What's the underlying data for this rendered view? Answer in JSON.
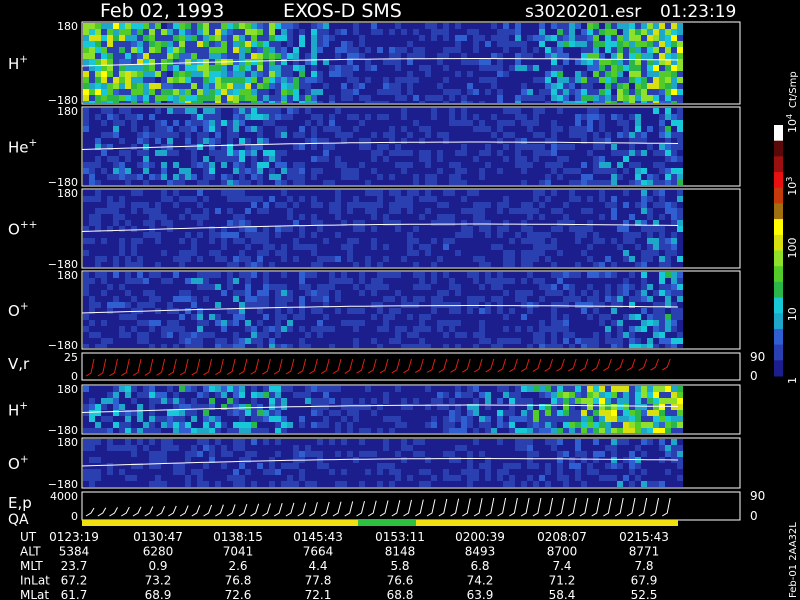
{
  "header": {
    "date": "Feb 02, 1993",
    "instrument": "EXOS-D SMS",
    "file": "s3020201.esr",
    "time": "01:23:19"
  },
  "panels": [
    {
      "id": "h-plus",
      "label": "H",
      "sup": "+",
      "ytop": "180",
      "ybot": "−180"
    },
    {
      "id": "he-plus",
      "label": "He",
      "sup": "+",
      "ytop": "180",
      "ybot": "−180"
    },
    {
      "id": "o-plusplus",
      "label": "O",
      "sup": "++",
      "ytop": "180",
      "ybot": "−180"
    },
    {
      "id": "o-plus",
      "label": "O",
      "sup": "+",
      "ytop": "180",
      "ybot": "−180"
    },
    {
      "id": "vr",
      "label": "V,r",
      "sup": "",
      "ytop": "25",
      "ybot": "0",
      "right_top": "90",
      "right_bot": "0"
    },
    {
      "id": "h-plus-2",
      "label": "H",
      "sup": "+",
      "ytop": "180",
      "ybot": "−180"
    },
    {
      "id": "o-plus-2",
      "label": "O",
      "sup": "+",
      "ytop": "180",
      "ybot": "−180"
    },
    {
      "id": "ep",
      "label": "E,p",
      "sup": "",
      "ytop": "4000",
      "ybot": "0",
      "right_top": "90",
      "right_bot": "0"
    }
  ],
  "qa_label": "QA",
  "colorbar": {
    "unit": "Ct/Smp",
    "ticks": [
      {
        "label": "10",
        "sup": "4",
        "value": 10000
      },
      {
        "label": "10",
        "sup": "3",
        "value": 1000
      },
      {
        "label": "100",
        "sup": "",
        "value": 100
      },
      {
        "label": "10",
        "sup": "",
        "value": 10
      },
      {
        "label": "1",
        "sup": "",
        "value": 1
      }
    ],
    "colors": [
      "#1b1e8c",
      "#2a3fb0",
      "#2f5fd0",
      "#1fa7c9",
      "#18c8d8",
      "#2bb64a",
      "#53cc2a",
      "#8ee02a",
      "#d8e010",
      "#ffff00",
      "#a07010",
      "#c43a0a",
      "#e81010",
      "#9a1010",
      "#5a0808",
      "#ffffff"
    ]
  },
  "footer": {
    "side_label": "Feb-01 2AA32L",
    "rows": [
      {
        "label": "UT",
        "values": [
          "0123:19",
          "0130:47",
          "0138:15",
          "0145:43",
          "0153:11",
          "0200:39",
          "0208:07",
          "0215:43"
        ]
      },
      {
        "label": "ALT",
        "values": [
          "5384",
          "6280",
          "7041",
          "7664",
          "8148",
          "8493",
          "8700",
          "8771"
        ]
      },
      {
        "label": "MLT",
        "values": [
          "23.7",
          "0.9",
          "2.6",
          "4.4",
          "5.8",
          "6.8",
          "7.4",
          "7.8"
        ]
      },
      {
        "label": "InLat",
        "values": [
          "67.2",
          "73.2",
          "76.8",
          "77.8",
          "76.6",
          "74.2",
          "71.2",
          "67.9"
        ]
      },
      {
        "label": "MLat",
        "values": [
          "61.7",
          "68.9",
          "72.6",
          "72.1",
          "68.8",
          "63.9",
          "58.4",
          "52.5"
        ]
      }
    ]
  },
  "chart_data": {
    "type": "heatmap",
    "x_ticks": [
      "0123:19",
      "0130:47",
      "0138:15",
      "0145:43",
      "0153:11",
      "0200:39",
      "0208:07",
      "0215:43"
    ],
    "pitch_angle_range": [
      -180,
      180
    ],
    "color_scale": "log",
    "color_range": [
      1,
      10000
    ],
    "series": [
      {
        "name": "H+",
        "activity": [
          0.9,
          0.7,
          0.8,
          0.2,
          0.1,
          0.2,
          0.6,
          0.9
        ]
      },
      {
        "name": "He+",
        "activity": [
          0.2,
          0.3,
          0.4,
          0.1,
          0.1,
          0.1,
          0.2,
          0.5
        ]
      },
      {
        "name": "O++",
        "activity": [
          0.1,
          0.1,
          0.2,
          0.1,
          0.1,
          0.1,
          0.1,
          0.4
        ]
      },
      {
        "name": "O+",
        "activity": [
          0.1,
          0.2,
          0.3,
          0.1,
          0.1,
          0.1,
          0.2,
          0.5
        ]
      },
      {
        "name": "H+ (2)",
        "activity": [
          0.4,
          0.4,
          0.5,
          0.1,
          0.1,
          0.4,
          0.8,
          0.9
        ]
      },
      {
        "name": "O+ (2)",
        "activity": [
          0.1,
          0.1,
          0.2,
          0.1,
          0.1,
          0.1,
          0.2,
          0.3
        ]
      }
    ]
  }
}
